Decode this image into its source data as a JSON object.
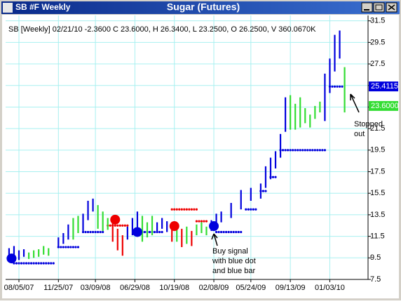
{
  "window": {
    "title": "SB #F Weekly"
  },
  "chart_data": {
    "type": "ohlc",
    "title": "Sugar (Futures)",
    "subtitle": "SB [Weekly] 02/21/10 -2.3600 C 23.6000, H 26.3400, L 23.2500, O 26.2500, V 360.0670K",
    "xlim": [
      -5.4,
      141.5
    ],
    "ylim": [
      7.5,
      32
    ],
    "xticks": [
      {
        "value": 0,
        "label": "08/05/07"
      },
      {
        "value": 16,
        "label": "11/25/07"
      },
      {
        "value": 31,
        "label": "03/09/08"
      },
      {
        "value": 47,
        "label": "06/29/08"
      },
      {
        "value": 63,
        "label": "10/19/08"
      },
      {
        "value": 79,
        "label": "02/08/09"
      },
      {
        "value": 94,
        "label": "05/24/09"
      },
      {
        "value": 110,
        "label": "09/13/09"
      },
      {
        "value": 126,
        "label": "01/03/10"
      }
    ],
    "yticks": [
      7.5,
      9.5,
      11.5,
      13.5,
      15.5,
      17.5,
      19.5,
      21.5,
      23.5,
      25.5,
      27.5,
      29.5,
      31.5
    ],
    "grid": true,
    "grid_color": "#a8f0f0",
    "series": [
      {
        "color": "#0000dd",
        "x": [
          -4,
          -2,
          0,
          2,
          16,
          18,
          20,
          26,
          28,
          30,
          44,
          46,
          48,
          56,
          58,
          60,
          78,
          80,
          82,
          86,
          90,
          94,
          98,
          100,
          102,
          104,
          106,
          108,
          124,
          126,
          128,
          130
        ],
        "low": [
          9.2,
          9.4,
          9.3,
          9.6,
          10.4,
          10.8,
          11.2,
          12.0,
          13.0,
          13.8,
          11.2,
          11.6,
          12.0,
          11.8,
          12.2,
          11.9,
          12.0,
          12.2,
          12.8,
          13.2,
          14.0,
          14.8,
          15.0,
          16.0,
          16.8,
          17.8,
          18.8,
          21.2,
          22.2,
          24.8,
          26.8,
          28.0
        ],
        "high": [
          10.4,
          10.6,
          10.2,
          10.3,
          11.4,
          11.8,
          12.6,
          13.6,
          14.8,
          15.0,
          12.4,
          13.2,
          13.8,
          12.8,
          13.2,
          12.9,
          13.0,
          13.6,
          13.8,
          14.6,
          15.8,
          16.0,
          16.4,
          18.0,
          18.8,
          19.4,
          21.0,
          24.4,
          26.6,
          28.0,
          30.2,
          30.6
        ]
      },
      {
        "color": "#33dd33",
        "x": [
          4,
          6,
          8,
          10,
          12,
          22,
          24,
          32,
          34,
          36,
          50,
          52,
          54,
          64,
          68,
          72,
          74,
          76,
          110,
          112,
          114,
          116,
          118,
          120,
          122,
          132
        ],
        "low": [
          9.4,
          9.5,
          9.6,
          9.8,
          9.7,
          11.2,
          11.8,
          12.2,
          12.0,
          12.1,
          11.0,
          11.4,
          11.6,
          11.0,
          10.8,
          11.6,
          11.8,
          11.6,
          21.4,
          21.4,
          21.6,
          22.0,
          21.6,
          22.4,
          23.0,
          23.0
        ],
        "high": [
          10.0,
          10.2,
          10.3,
          10.6,
          10.4,
          13.2,
          13.4,
          14.4,
          13.8,
          13.2,
          13.4,
          12.8,
          13.4,
          12.6,
          12.4,
          12.6,
          12.8,
          12.4,
          24.6,
          23.8,
          24.4,
          23.4,
          22.8,
          23.6,
          24.0,
          27.2
        ]
      },
      {
        "color": "#ee0000",
        "x": [
          38,
          40,
          42,
          62,
          66,
          70
        ],
        "low": [
          11.0,
          10.2,
          9.7,
          11.0,
          10.5,
          10.6
        ],
        "high": [
          13.0,
          12.2,
          11.6,
          12.8,
          12.2,
          12.0
        ]
      }
    ],
    "stops": [
      {
        "color": "#0000dd",
        "from": [
          -2,
          16,
          26,
          48,
          80,
          92,
          98,
          102,
          106,
          126
        ],
        "to": [
          14,
          24,
          34,
          58,
          90,
          96,
          100,
          104,
          124,
          131
        ],
        "values": [
          9.0,
          10.5,
          11.9,
          11.9,
          11.9,
          14.0,
          15.7,
          17.0,
          19.5,
          25.4
        ]
      },
      {
        "color": "#ee0000",
        "from": [
          36,
          62,
          72
        ],
        "to": [
          44,
          72,
          76
        ],
        "values": [
          12.5,
          14.0,
          12.9
        ]
      }
    ],
    "signals": {
      "x": [
        -3,
        39,
        48,
        63,
        79
      ],
      "values": [
        9.45,
        13.05,
        11.9,
        12.45,
        12.45
      ],
      "colors": [
        "#0000dd",
        "#ee0000",
        "#0000dd",
        "#ee0000",
        "#0000dd"
      ]
    },
    "price_tags": [
      {
        "value": 25.4115,
        "label": "25.4115",
        "color": "#0000dd"
      },
      {
        "value": 23.6,
        "label": "23.6000",
        "color": "#33dd33"
      }
    ],
    "annotations": [
      "Buy signal\nwith blue dot\nand blue bar",
      "Stopped\nout"
    ]
  }
}
